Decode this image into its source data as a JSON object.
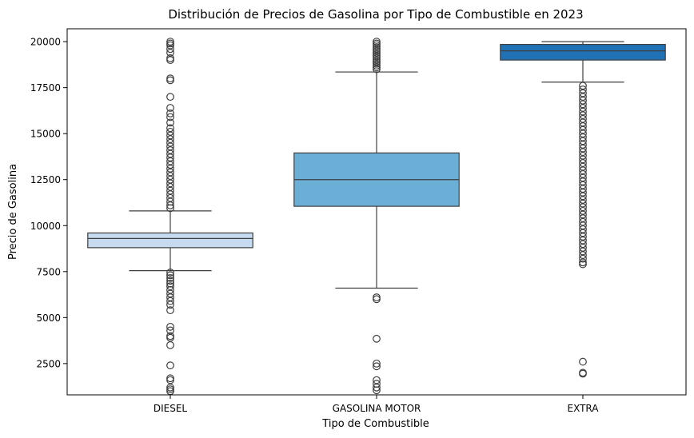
{
  "chart_data": {
    "type": "box",
    "title": "Distribución de Precios de Gasolina por Tipo de Combustible en 2023",
    "xlabel": "Tipo de Combustible",
    "ylabel": "Precio de Gasolina",
    "ylim": [
      800,
      20700
    ],
    "yticks": [
      2500,
      5000,
      7500,
      10000,
      12500,
      15000,
      17500,
      20000
    ],
    "grid": false,
    "legend": false,
    "categories": [
      "DIESEL",
      "GASOLINA MOTOR",
      "EXTRA"
    ],
    "boxes": [
      {
        "category": "DIESEL",
        "color": "#c6dbef",
        "whisker_low": 7550,
        "q1": 8800,
        "median": 9300,
        "q3": 9600,
        "whisker_high": 10800,
        "outliers": [
          20000,
          19900,
          19800,
          19600,
          19400,
          19100,
          19000,
          18000,
          17900,
          17000,
          16400,
          16100,
          15900,
          15600,
          15300,
          15100,
          14900,
          14700,
          14500,
          14300,
          14100,
          13900,
          13700,
          13500,
          13300,
          13100,
          12900,
          12700,
          12500,
          12300,
          12100,
          11900,
          11700,
          11500,
          11300,
          11100,
          10950,
          7450,
          7300,
          7150,
          7000,
          6850,
          6700,
          6500,
          6300,
          6100,
          5900,
          5700,
          5400,
          4500,
          4300,
          4000,
          3900,
          3500,
          2400,
          1700,
          1600,
          1200,
          1100,
          1000
        ]
      },
      {
        "category": "GASOLINA MOTOR",
        "color": "#6baed6",
        "whisker_low": 6600,
        "q1": 11050,
        "median": 12500,
        "q3": 13950,
        "whisker_high": 18350,
        "outliers": [
          20000,
          19900,
          19800,
          19700,
          19600,
          19500,
          19400,
          19300,
          19200,
          19100,
          19000,
          18900,
          18800,
          18700,
          18600,
          18500,
          6100,
          6000,
          3850,
          2500,
          2350,
          1600,
          1400,
          1200,
          1050
        ]
      },
      {
        "category": "EXTRA",
        "color": "#2171b5",
        "whisker_low": 17800,
        "q1": 19000,
        "median": 19500,
        "q3": 19850,
        "whisker_high": 20000,
        "outliers": [
          17600,
          17400,
          17200,
          17000,
          16800,
          16600,
          16400,
          16200,
          16000,
          15800,
          15600,
          15400,
          15200,
          15000,
          14800,
          14600,
          14400,
          14200,
          14000,
          13800,
          13600,
          13400,
          13200,
          13000,
          12800,
          12600,
          12400,
          12200,
          12000,
          11800,
          11600,
          11400,
          11200,
          11000,
          10800,
          10600,
          10400,
          10200,
          10000,
          9800,
          9600,
          9400,
          9200,
          9000,
          8800,
          8600,
          8400,
          8200,
          8000,
          7900,
          2600,
          2000,
          1950
        ]
      }
    ]
  }
}
